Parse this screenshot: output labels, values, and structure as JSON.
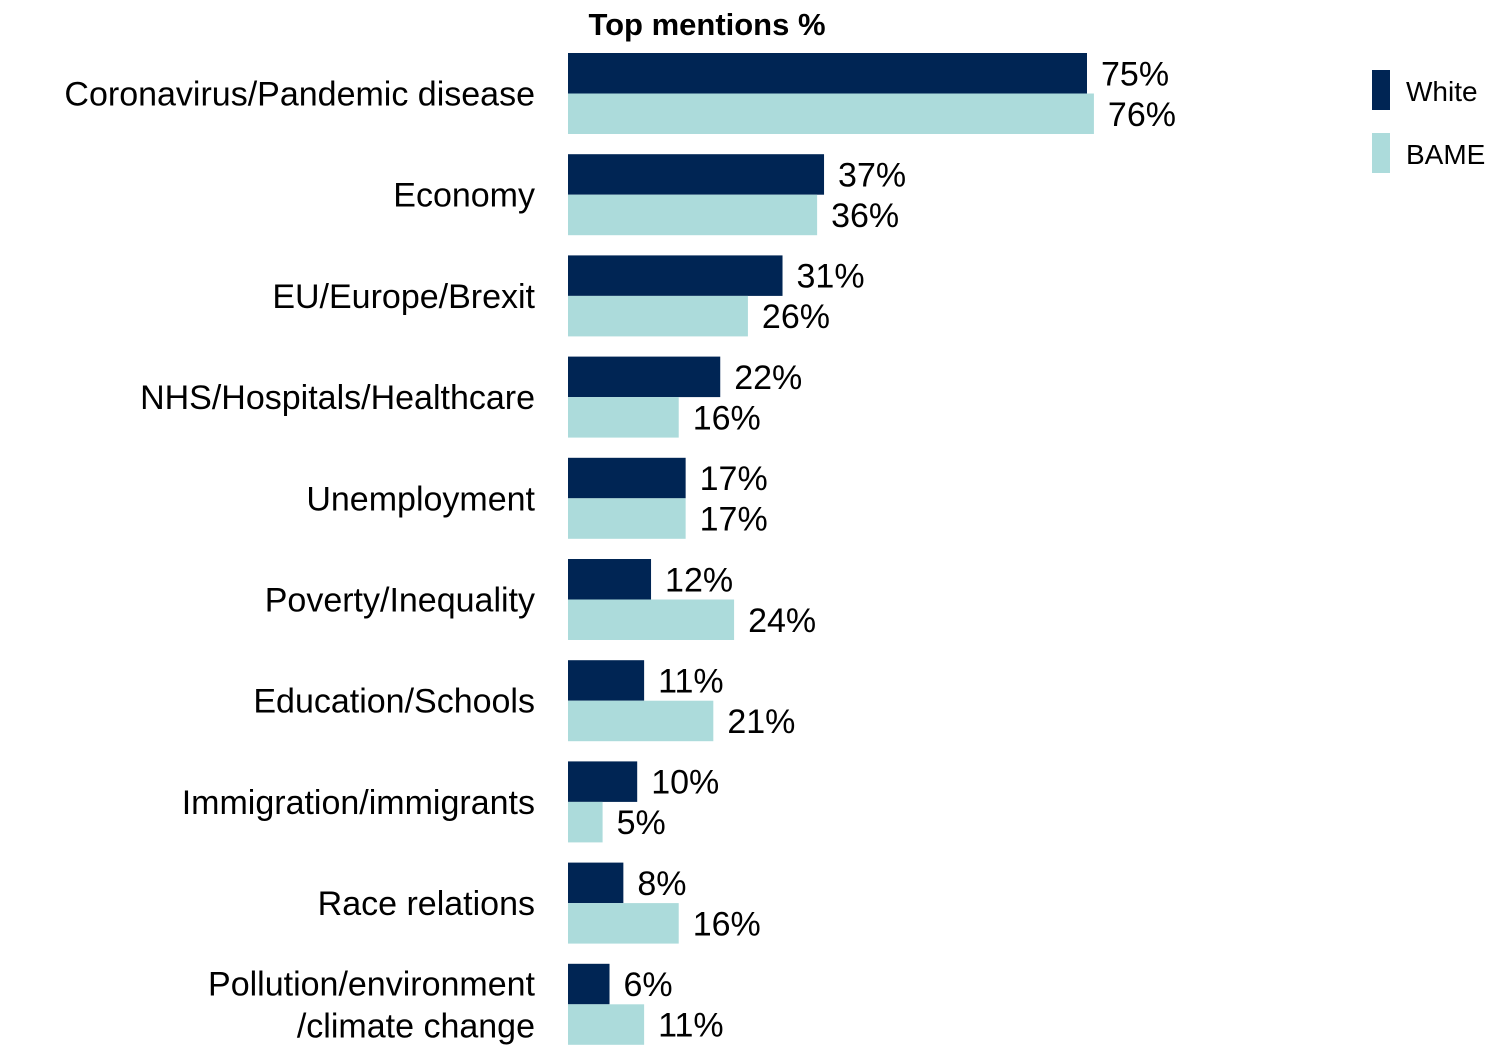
{
  "chart_data": {
    "type": "bar",
    "orientation": "horizontal",
    "title": "Top mentions %",
    "categories": [
      [
        "Coronavirus/Pandemic disease"
      ],
      [
        "Economy"
      ],
      [
        "EU/Europe/Brexit"
      ],
      [
        "NHS/Hospitals/Healthcare"
      ],
      [
        "Unemployment"
      ],
      [
        "Poverty/Inequality"
      ],
      [
        "Education/Schools"
      ],
      [
        "Immigration/immigrants"
      ],
      [
        "Race relations"
      ],
      [
        "Pollution/environment",
        "/climate change"
      ]
    ],
    "series": [
      {
        "name": "White",
        "color": "#002554",
        "values": [
          75,
          37,
          31,
          22,
          17,
          12,
          11,
          10,
          8,
          6
        ],
        "labels": [
          "75%",
          "37%",
          "31%",
          "22%",
          "17%",
          "12%",
          "11%",
          "10%",
          "8%",
          "6%"
        ]
      },
      {
        "name": "BAME",
        "color": "#acdbdb",
        "values": [
          76,
          36,
          26,
          16,
          17,
          24,
          21,
          5,
          16,
          11
        ],
        "labels": [
          "76%",
          "36%",
          "26%",
          "16%",
          "17%",
          "24%",
          "21%",
          "5%",
          "16%",
          "11%"
        ]
      }
    ],
    "xlim": [
      0,
      100
    ],
    "grid": false,
    "axis_ticks_shown": false,
    "legend_position": "top-right"
  }
}
